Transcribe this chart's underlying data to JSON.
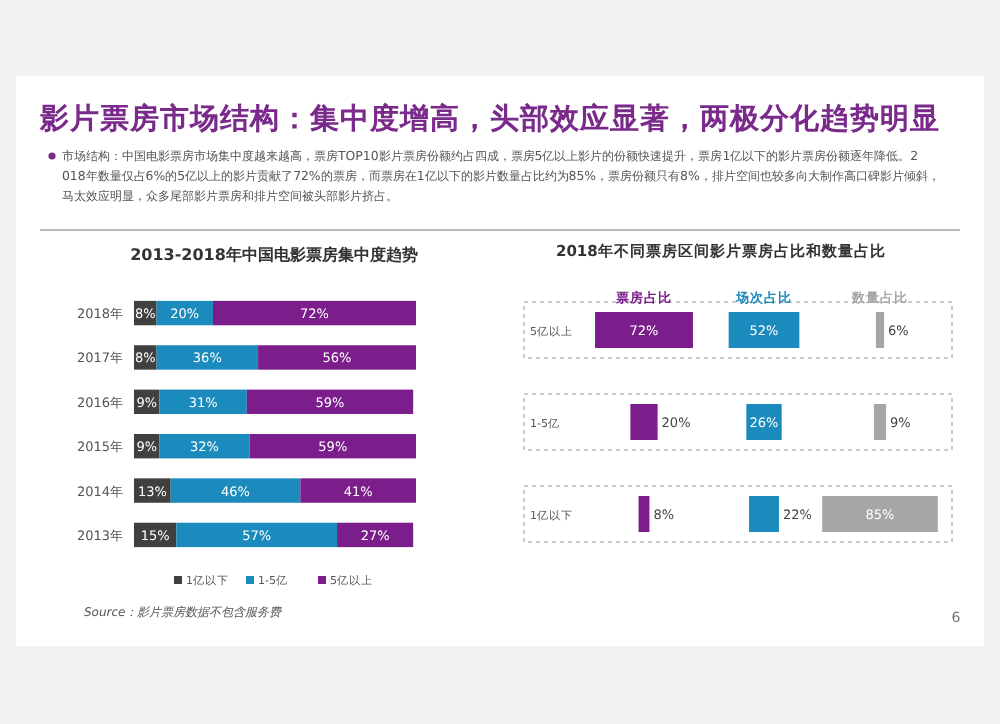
{
  "chart_data": [
    {
      "type": "other",
      "title": "影片票房市场结构：集中度增高，头部效应显著，两极分化趋势明显",
      "annotations": [
        "市场结构：中国电影票房市场集中度越来越高，票房TOP10影片票房份额约占四成，票房5亿以上影片的份额快速提升，票房1亿以下的影片票房份额逐年降低。2018年数量仅占6%的5亿以上的影片贡献了72%的票房，而票房在1亿以下的影片数量占比约为85%，票房份额只有8%，排片空间也较多向大制作高口碑影片倾斜，马太效应明显，众多尾部影片票房和排片空间被头部影片挤占。",
        "6"
      ]
    },
    {
      "type": "bar",
      "orientation": "horizontal",
      "stacked": true,
      "title": "2013-2018年中国电影票房集中度趋势",
      "categories": [
        "2018年",
        "2017年",
        "2016年",
        "2015年",
        "2014年",
        "2013年"
      ],
      "xlim": [
        0,
        100
      ],
      "tick_labels": "y",
      "legend": "bottom",
      "annotations": [
        "Source：影片票房数据不包含服务费"
      ],
      "series": [
        {
          "name": "1亿以下",
          "color": "#404040",
          "values": [
            8,
            8,
            9,
            9,
            13,
            15
          ],
          "value_labels": [
            "8%",
            "8%",
            "9%",
            "9%",
            "13%",
            "15%"
          ]
        },
        {
          "name": "1-5亿",
          "color": "#1b8bbd",
          "values": [
            20,
            36,
            31,
            32,
            46,
            57
          ],
          "value_labels": [
            "20%",
            "36%",
            "31%",
            "32%",
            "46%",
            "57%"
          ]
        },
        {
          "name": "5亿以上",
          "color": "#7b1e8c",
          "values": [
            72,
            56,
            59,
            59,
            41,
            27
          ],
          "value_labels": [
            "72%",
            "56%",
            "59%",
            "59%",
            "41%",
            "27%"
          ]
        }
      ]
    },
    {
      "type": "other",
      "title": "2018年不同票房区间影片票房占比和数量占比",
      "categories": [
        "5亿以上",
        "1-5亿",
        "1亿以下"
      ],
      "series": [
        {
          "name": "票房占比",
          "color": "#7b1e8c",
          "values": [
            72,
            20,
            8
          ],
          "value_labels": [
            "72%",
            "20%",
            "8%"
          ]
        },
        {
          "name": "场次占比",
          "color": "#1b8bbd",
          "values": [
            52,
            26,
            22
          ],
          "value_labels": [
            "52%",
            "26%",
            "22%"
          ]
        },
        {
          "name": "数量占比",
          "color": "#a6a6a6",
          "values": [
            6,
            9,
            85
          ],
          "value_labels": [
            "6%",
            "9%",
            "85%"
          ]
        }
      ]
    }
  ]
}
